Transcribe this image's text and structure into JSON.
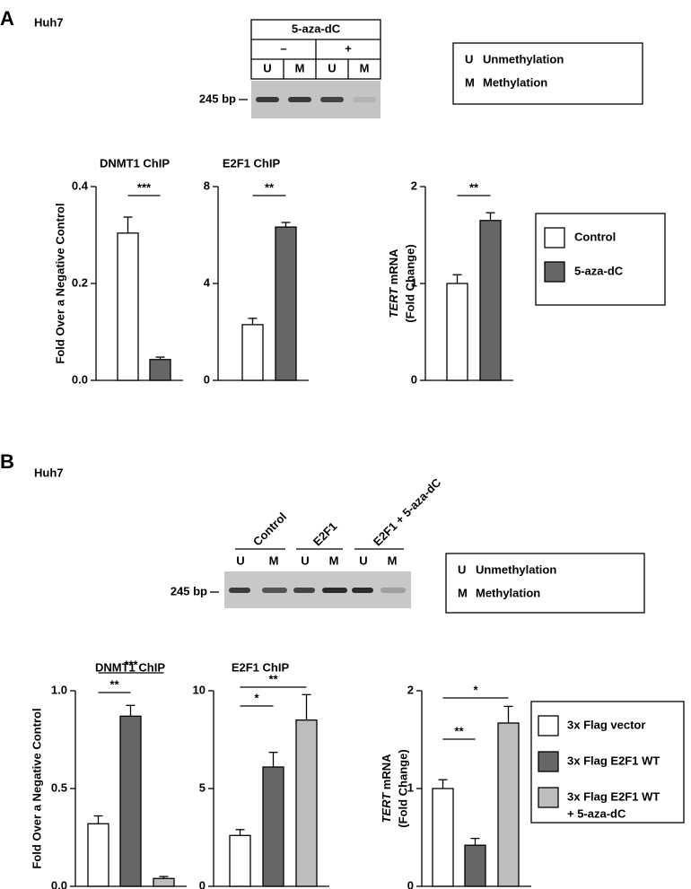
{
  "figure": {
    "panel_a": {
      "letter": "A",
      "cell": "Huh7",
      "gel": {
        "treatment": "5-aza-dC",
        "groups": [
          "–",
          "+"
        ],
        "lanes": [
          "U",
          "M",
          "U",
          "M"
        ],
        "size": "245 bp"
      },
      "key": [
        {
          "letter": "U",
          "meaning": "Unmethylation"
        },
        {
          "letter": "M",
          "meaning": "Methylation"
        }
      ],
      "legend": [
        {
          "name": "Control",
          "color": "#ffffff"
        },
        {
          "name": "5-aza-dC",
          "color": "#666666"
        }
      ]
    },
    "panel_b": {
      "letter": "B",
      "cell": "Huh7",
      "gel": {
        "groups": [
          "Control",
          "E2F1",
          "E2F1 + 5-aza-dC"
        ],
        "lanes": [
          "U",
          "M",
          "U",
          "M",
          "U",
          "M"
        ],
        "size": "245 bp"
      },
      "key": [
        {
          "letter": "U",
          "meaning": "Unmethylation"
        },
        {
          "letter": "M",
          "meaning": "Methylation"
        }
      ],
      "legend": [
        {
          "name": [
            "3x Flag vector"
          ],
          "color": "#ffffff"
        },
        {
          "name": [
            "3x Flag E2F1 WT"
          ],
          "color": "#666666"
        },
        {
          "name": [
            "3x Flag E2F1 WT",
            "+ 5-aza-dC"
          ],
          "color": "#bdbdbd"
        }
      ]
    }
  },
  "chart_data": [
    {
      "type": "bar",
      "title": "DNMT1 ChIP",
      "ylabel": "Fold Over a Negative Control",
      "categories": [
        null,
        null
      ],
      "values": [
        0.304,
        0.043
      ],
      "errors": [
        0.033,
        0.005
      ],
      "colors": [
        "#ffffff",
        "#666666"
      ],
      "ylim": [
        0,
        0.4
      ],
      "yticks": [
        {
          "value": 0,
          "label": "0.0"
        },
        0.2,
        0.4
      ],
      "significance": [
        {
          "from": 0,
          "to": 1,
          "label": "***"
        }
      ]
    },
    {
      "type": "bar",
      "title": "E2F1 ChIP",
      "categories": [
        null,
        null
      ],
      "values": [
        2.3,
        6.33
      ],
      "errors": [
        0.26,
        0.19
      ],
      "colors": [
        "#ffffff",
        "#666666"
      ],
      "ylim": [
        0,
        8
      ],
      "yticks": [
        0,
        4,
        8
      ],
      "significance": [
        {
          "from": 0,
          "to": 1,
          "label": "**"
        }
      ]
    },
    {
      "type": "bar",
      "ylabel": {
        "gene": "TERT",
        "rest": "mRNA",
        "line2": "(Fold Change)"
      },
      "categories": [
        null,
        null
      ],
      "values": [
        1.0,
        1.65
      ],
      "errors": [
        0.09,
        0.08
      ],
      "colors": [
        "#ffffff",
        "#666666"
      ],
      "ylim": [
        0,
        2
      ],
      "yticks": [
        0,
        1,
        2
      ],
      "significance": [
        {
          "from": 0,
          "to": 1,
          "label": "**"
        }
      ]
    },
    {
      "type": "bar",
      "title": "DNMT1 ChIP",
      "ylabel": "Fold Over a Negative Control",
      "categories": [
        null,
        null,
        null
      ],
      "values": [
        0.32,
        0.87,
        0.04
      ],
      "errors": [
        0.04,
        0.055,
        0.01
      ],
      "colors": [
        "#ffffff",
        "#666666",
        "#bdbdbd"
      ],
      "ylim": [
        0,
        1
      ],
      "yticks": [
        {
          "value": 0,
          "label": "0.0"
        },
        0.5,
        {
          "value": 1,
          "label": "1.0"
        }
      ],
      "significance": [
        {
          "from": 0,
          "to": 1,
          "label": "**"
        },
        {
          "from": 0,
          "to": 2,
          "label": "***"
        }
      ]
    },
    {
      "type": "bar",
      "title": "E2F1 ChIP",
      "categories": [
        null,
        null,
        null
      ],
      "values": [
        2.6,
        6.1,
        8.5
      ],
      "errors": [
        0.3,
        0.75,
        1.3
      ],
      "colors": [
        "#ffffff",
        "#666666",
        "#bdbdbd"
      ],
      "ylim": [
        0,
        10
      ],
      "yticks": [
        0,
        5,
        10
      ],
      "significance": [
        {
          "from": 0,
          "to": 1,
          "label": "*"
        },
        {
          "from": 0,
          "to": 2,
          "label": "**"
        }
      ]
    },
    {
      "type": "bar",
      "ylabel": {
        "gene": "TERT",
        "rest": "mRNA",
        "line2": "(Fold Change)"
      },
      "categories": [
        null,
        null,
        null
      ],
      "values": [
        1.0,
        0.42,
        1.67
      ],
      "errors": [
        0.09,
        0.07,
        0.17
      ],
      "colors": [
        "#ffffff",
        "#666666",
        "#bdbdbd"
      ],
      "ylim": [
        0,
        2
      ],
      "yticks": [
        0,
        1,
        2
      ],
      "significance": [
        {
          "from": 0,
          "to": 1,
          "label": "**"
        },
        {
          "from": 0,
          "to": 2,
          "label": "*"
        }
      ]
    }
  ]
}
